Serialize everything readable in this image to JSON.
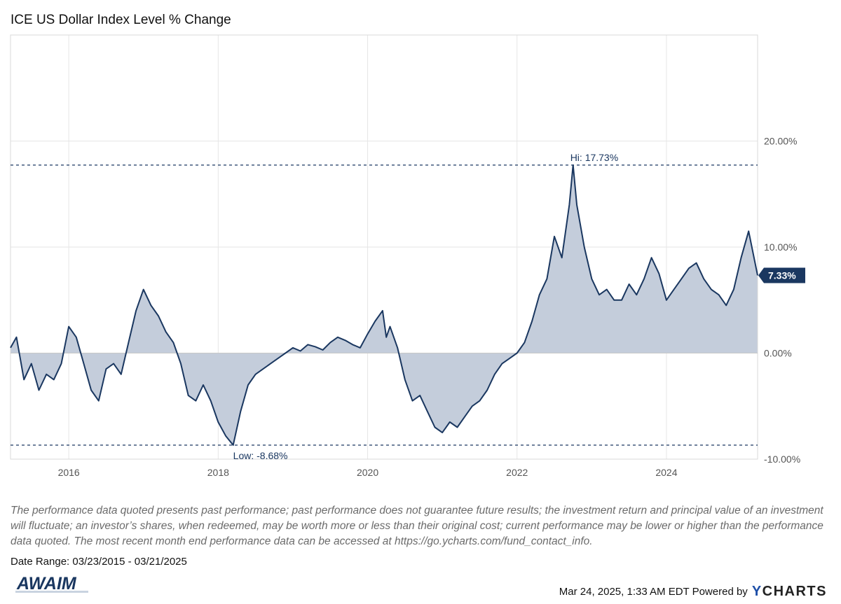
{
  "header": {
    "title": "ICE US Dollar Index Level % Change"
  },
  "chart_data": {
    "type": "area",
    "title": "ICE US Dollar Index Level % Change",
    "series": [
      {
        "name": "ICE US Dollar Index Level % Change",
        "x": [
          2015.22,
          2015.3,
          2015.4,
          2015.5,
          2015.6,
          2015.7,
          2015.8,
          2015.9,
          2016.0,
          2016.1,
          2016.2,
          2016.3,
          2016.4,
          2016.5,
          2016.6,
          2016.7,
          2016.8,
          2016.9,
          2017.0,
          2017.1,
          2017.2,
          2017.3,
          2017.4,
          2017.5,
          2017.6,
          2017.7,
          2017.8,
          2017.9,
          2018.0,
          2018.1,
          2018.2,
          2018.3,
          2018.4,
          2018.5,
          2018.6,
          2018.7,
          2018.8,
          2018.9,
          2019.0,
          2019.1,
          2019.2,
          2019.3,
          2019.4,
          2019.5,
          2019.6,
          2019.7,
          2019.8,
          2019.9,
          2020.0,
          2020.1,
          2020.2,
          2020.25,
          2020.3,
          2020.4,
          2020.5,
          2020.6,
          2020.7,
          2020.8,
          2020.9,
          2021.0,
          2021.1,
          2021.2,
          2021.3,
          2021.4,
          2021.5,
          2021.6,
          2021.7,
          2021.8,
          2021.9,
          2022.0,
          2022.1,
          2022.2,
          2022.3,
          2022.4,
          2022.5,
          2022.6,
          2022.7,
          2022.75,
          2022.8,
          2022.9,
          2023.0,
          2023.1,
          2023.2,
          2023.3,
          2023.4,
          2023.5,
          2023.6,
          2023.7,
          2023.8,
          2023.9,
          2024.0,
          2024.1,
          2024.2,
          2024.3,
          2024.4,
          2024.5,
          2024.6,
          2024.7,
          2024.8,
          2024.9,
          2025.0,
          2025.1,
          2025.22
        ],
        "values": [
          0.5,
          1.5,
          -2.5,
          -1.0,
          -3.5,
          -2.0,
          -2.5,
          -1.0,
          2.5,
          1.5,
          -1.0,
          -3.5,
          -4.5,
          -1.5,
          -1.0,
          -2.0,
          1.0,
          4.0,
          6.0,
          4.5,
          3.5,
          2.0,
          1.0,
          -1.0,
          -4.0,
          -4.5,
          -3.0,
          -4.5,
          -6.5,
          -7.8,
          -8.68,
          -5.5,
          -3.0,
          -2.0,
          -1.5,
          -1.0,
          -0.5,
          0.0,
          0.5,
          0.2,
          0.8,
          0.6,
          0.3,
          1.0,
          1.5,
          1.2,
          0.8,
          0.5,
          1.8,
          3.0,
          4.0,
          1.5,
          2.5,
          0.5,
          -2.5,
          -4.5,
          -4.0,
          -5.5,
          -7.0,
          -7.5,
          -6.5,
          -7.0,
          -6.0,
          -5.0,
          -4.5,
          -3.5,
          -2.0,
          -1.0,
          -0.5,
          0.0,
          1.0,
          3.0,
          5.5,
          7.0,
          11.0,
          9.0,
          14.0,
          17.73,
          14.0,
          10.0,
          7.0,
          5.5,
          6.0,
          5.0,
          5.0,
          6.5,
          5.5,
          7.0,
          9.0,
          7.5,
          5.0,
          6.0,
          7.0,
          8.0,
          8.5,
          7.0,
          6.0,
          5.5,
          4.5,
          6.0,
          9.0,
          11.5,
          7.33
        ]
      }
    ],
    "xlim": [
      2015.22,
      2025.22
    ],
    "ylim": [
      -10,
      30
    ],
    "x_ticks": [
      2016,
      2018,
      2020,
      2022,
      2024
    ],
    "x_tick_labels": [
      "2016",
      "2018",
      "2020",
      "2022",
      "2024"
    ],
    "y_ticks": [
      20,
      10,
      0,
      -10
    ],
    "y_tick_labels": [
      "20.00%",
      "10.00%",
      "0.00%",
      "-10.00%"
    ],
    "high": {
      "value": 17.73,
      "x": 2022.75,
      "label": "Hi: 17.73%"
    },
    "low": {
      "value": -8.68,
      "x": 2018.2,
      "label": "Low: -8.68%"
    },
    "last": {
      "value": 7.33,
      "label": "7.33%"
    },
    "line_color": "#1a3760",
    "fill_color": "#c4cddb",
    "grid": true,
    "xlabel": "",
    "ylabel": ""
  },
  "disclaimer": "The performance data quoted presents past performance; past performance does not guarantee future results; the investment return and principal value of an investment will fluctuate; an investor’s shares, when redeemed, may be worth more or less than their original cost; current performance may be lower or higher than the performance data quoted. The most recent month end performance data can be accessed at https://go.ycharts.com/fund_contact_info.",
  "date_range": "Date Range: 03/23/2015 - 03/21/2025",
  "logo": {
    "text": "AWAIM"
  },
  "footer": {
    "timestamp": "Mar 24, 2025, 1:33 AM EDT Powered by",
    "brand_y": "Y",
    "brand_rest": "CHARTS"
  }
}
